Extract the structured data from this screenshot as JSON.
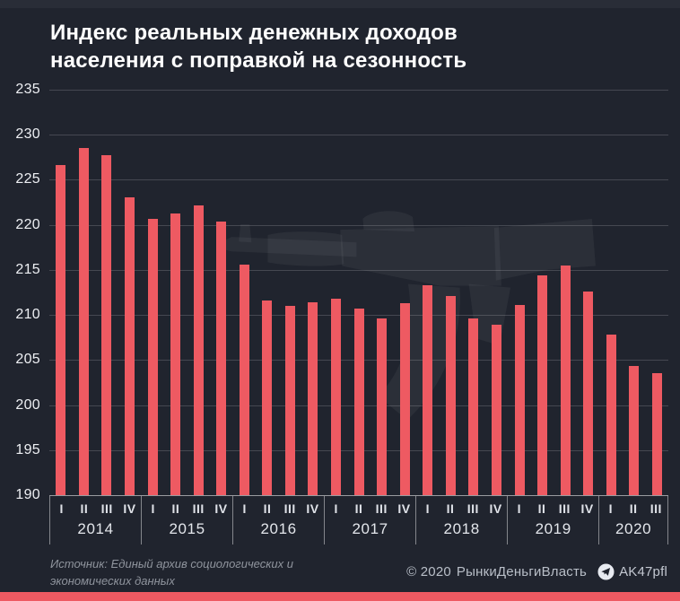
{
  "title_line1": "Индекс реальных денежных доходов",
  "title_line2": "населения с поправкой на сезонность",
  "chart_data": {
    "type": "bar",
    "title": "Индекс реальных денежных доходов населения с поправкой на сезонность",
    "xlabel": "",
    "ylabel": "",
    "ylim": [
      190,
      235
    ],
    "yticks": [
      235,
      230,
      225,
      220,
      215,
      210,
      205,
      200,
      195,
      190
    ],
    "grid": "horizontal",
    "legend": "none",
    "bar_color": "#ee5a62",
    "groups": [
      {
        "year": "2014",
        "quarters": [
          "I",
          "II",
          "III",
          "IV"
        ],
        "values": [
          226.6,
          228.5,
          227.7,
          223.1
        ]
      },
      {
        "year": "2015",
        "quarters": [
          "I",
          "II",
          "III",
          "IV"
        ],
        "values": [
          220.7,
          221.3,
          222.2,
          220.4
        ]
      },
      {
        "year": "2016",
        "quarters": [
          "I",
          "II",
          "III",
          "IV"
        ],
        "values": [
          215.6,
          211.6,
          211.0,
          211.4
        ]
      },
      {
        "year": "2017",
        "quarters": [
          "I",
          "II",
          "III",
          "IV"
        ],
        "values": [
          211.8,
          210.7,
          209.6,
          211.3
        ]
      },
      {
        "year": "2018",
        "quarters": [
          "I",
          "II",
          "III",
          "IV"
        ],
        "values": [
          213.3,
          212.1,
          209.6,
          208.9
        ]
      },
      {
        "year": "2019",
        "quarters": [
          "I",
          "II",
          "III",
          "IV"
        ],
        "values": [
          211.1,
          214.4,
          215.5,
          212.6
        ]
      },
      {
        "year": "2020",
        "quarters": [
          "I",
          "II",
          "III"
        ],
        "values": [
          207.8,
          204.3,
          203.5
        ]
      }
    ]
  },
  "footer": {
    "source_line1": "Источник: Единый архив социологических и",
    "source_line2": "экономических данных",
    "copyright": "© 2020",
    "brand": "РынкиДеньгиВласть",
    "telegram_icon": "telegram-icon",
    "channel": "AK47pfl"
  },
  "colors": {
    "background": "#20242e",
    "top_band": "#292d37",
    "accent": "#ee5a62",
    "title_text": "#ffffff",
    "axis_text": "#e3e6eb",
    "gridline": "rgba(255,255,255,0.17)",
    "axis_line": "rgba(255,255,255,0.55)",
    "source_text": "#8f949d",
    "credits_text": "#b9bfc8",
    "watermark": "rgba(255,255,255,0.05)"
  }
}
